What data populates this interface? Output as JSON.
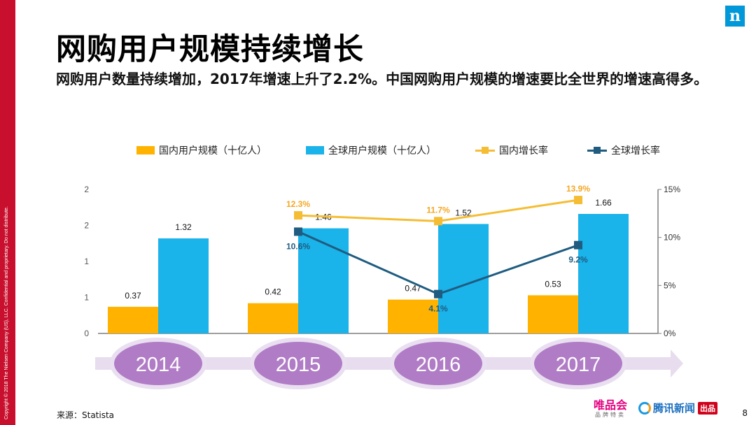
{
  "header": {
    "title": "网购用户规模持续增长",
    "subtitle": "网购用户数量持续增加，2017年增速上升了2.2%。中国网购用户规模的增速要比全世界的增速高得多。",
    "logo_letter": "n"
  },
  "sidebar": {
    "copyright": "Copyright © 2018 The Nielsen Company (US), LLC. Confidential and proprietary. Do not distribute."
  },
  "footer": {
    "source": "来源：Statista",
    "page_number": "8",
    "vip_main": "唯品会",
    "vip_sub": "品牌特卖",
    "tencent_name": "腾讯新闻",
    "tencent_tag": "出品"
  },
  "colors": {
    "domestic_bar": "#ffb300",
    "global_bar": "#1ab3ea",
    "domestic_line": "#f5bd33",
    "global_line": "#1f5c80",
    "axis": "#7f7f7f",
    "timeline": "#e8dcef",
    "year_circle": "#b07cc6",
    "year_circle_border": "#e9dff1",
    "label_orange": "#f5a623",
    "label_dark": "#1f5c80"
  },
  "chart_data": {
    "type": "bar",
    "categories": [
      "2014",
      "2015",
      "2016",
      "2017"
    ],
    "series": [
      {
        "name": "国内用户规模（十亿人）",
        "type": "bar",
        "axis": "left",
        "values": [
          0.37,
          0.42,
          0.47,
          0.53
        ],
        "labels": [
          "0.37",
          "0.42",
          "0.47",
          "0.53"
        ]
      },
      {
        "name": "全球用户规模（十亿人）",
        "type": "bar",
        "axis": "left",
        "values": [
          1.32,
          1.46,
          1.52,
          1.66
        ],
        "labels": [
          "1.32",
          "1.46",
          "1.52",
          "1.66"
        ]
      },
      {
        "name": "国内增长率",
        "type": "line",
        "axis": "right",
        "values": [
          null,
          12.3,
          11.7,
          13.9
        ],
        "labels": [
          "",
          "12.3%",
          "11.7%",
          "13.9%"
        ]
      },
      {
        "name": "全球增长率",
        "type": "line",
        "axis": "right",
        "values": [
          null,
          10.6,
          4.1,
          9.2
        ],
        "labels": [
          "",
          "10.6%",
          "4.1%",
          "9.2%"
        ]
      }
    ],
    "left_axis": {
      "ylim": [
        0,
        2
      ],
      "tick_labels": [
        "0",
        "1",
        "1",
        "2",
        "2"
      ]
    },
    "right_axis": {
      "ylim": [
        0,
        15
      ],
      "tick_labels": [
        "0%",
        "5%",
        "10%",
        "15%"
      ]
    },
    "legend_placement": "top",
    "grid": false
  }
}
